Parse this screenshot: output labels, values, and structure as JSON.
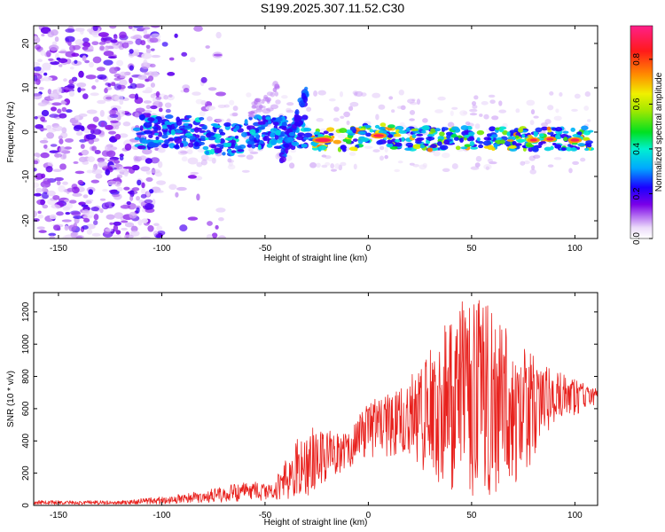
{
  "title": "S199.2025.307.11.52.C30",
  "chart_data": [
    {
      "type": "heatmap",
      "xlabel": "Height of straight line (km)",
      "ylabel": "Frequency (Hz)",
      "xlim": [
        -162,
        111
      ],
      "ylim": [
        -24,
        24
      ],
      "x_ticks": [
        -150,
        -100,
        -50,
        0,
        50,
        100
      ],
      "y_ticks": [
        -20,
        -10,
        0,
        10,
        20
      ],
      "colorbar": {
        "label": "Normalized spectral amplitude",
        "range": [
          0,
          0.95
        ],
        "ticks": [
          "0.0",
          "0.2",
          "0.4",
          "0.6",
          "0.8"
        ],
        "tick_values": [
          0,
          0.2,
          0.4,
          0.6,
          0.8
        ]
      },
      "features": [
        {
          "name": "scattered noise",
          "x_range": [
            -162,
            -100
          ],
          "freq_range": [
            -24,
            24
          ],
          "amplitude": 0.05
        },
        {
          "name": "main band",
          "x_range": [
            -112,
            -30
          ],
          "freq_center": 0,
          "amplitude": 0.25
        },
        {
          "name": "rising streak",
          "x_range": [
            -42,
            -30
          ],
          "freq_range": [
            -7,
            9
          ],
          "amplitude": 0.3
        },
        {
          "name": "strong band",
          "x_range": [
            -30,
            108
          ],
          "freq_center": -1.5,
          "amplitude": 0.7
        },
        {
          "name": "peak spots",
          "x_values": [
            -22,
            5,
            80,
            88,
            100
          ],
          "freq": -1.5,
          "amplitude": 0.9
        }
      ]
    },
    {
      "type": "line",
      "xlabel": "Height of straight line (km)",
      "ylabel": "SNR (10 * v/v)",
      "xlim": [
        -162,
        111
      ],
      "ylim": [
        0,
        1320
      ],
      "x_ticks": [
        -150,
        -100,
        -50,
        0,
        50,
        100
      ],
      "y_ticks": [
        0,
        200,
        400,
        600,
        800,
        1000,
        1200
      ],
      "color": "#e8211d",
      "envelope": {
        "x": [
          -162,
          -120,
          -100,
          -80,
          -60,
          -45,
          -35,
          -30,
          -20,
          -10,
          0,
          10,
          20,
          30,
          40,
          50,
          60,
          70,
          80,
          90,
          100,
          111
        ],
        "lower": [
          5,
          5,
          8,
          15,
          25,
          35,
          40,
          50,
          150,
          230,
          300,
          300,
          260,
          180,
          90,
          30,
          60,
          100,
          260,
          500,
          560,
          620
        ],
        "upper": [
          30,
          30,
          55,
          90,
          150,
          160,
          420,
          520,
          480,
          440,
          650,
          700,
          800,
          1000,
          1200,
          1320,
          1220,
          1050,
          930,
          850,
          780,
          720
        ]
      }
    }
  ]
}
